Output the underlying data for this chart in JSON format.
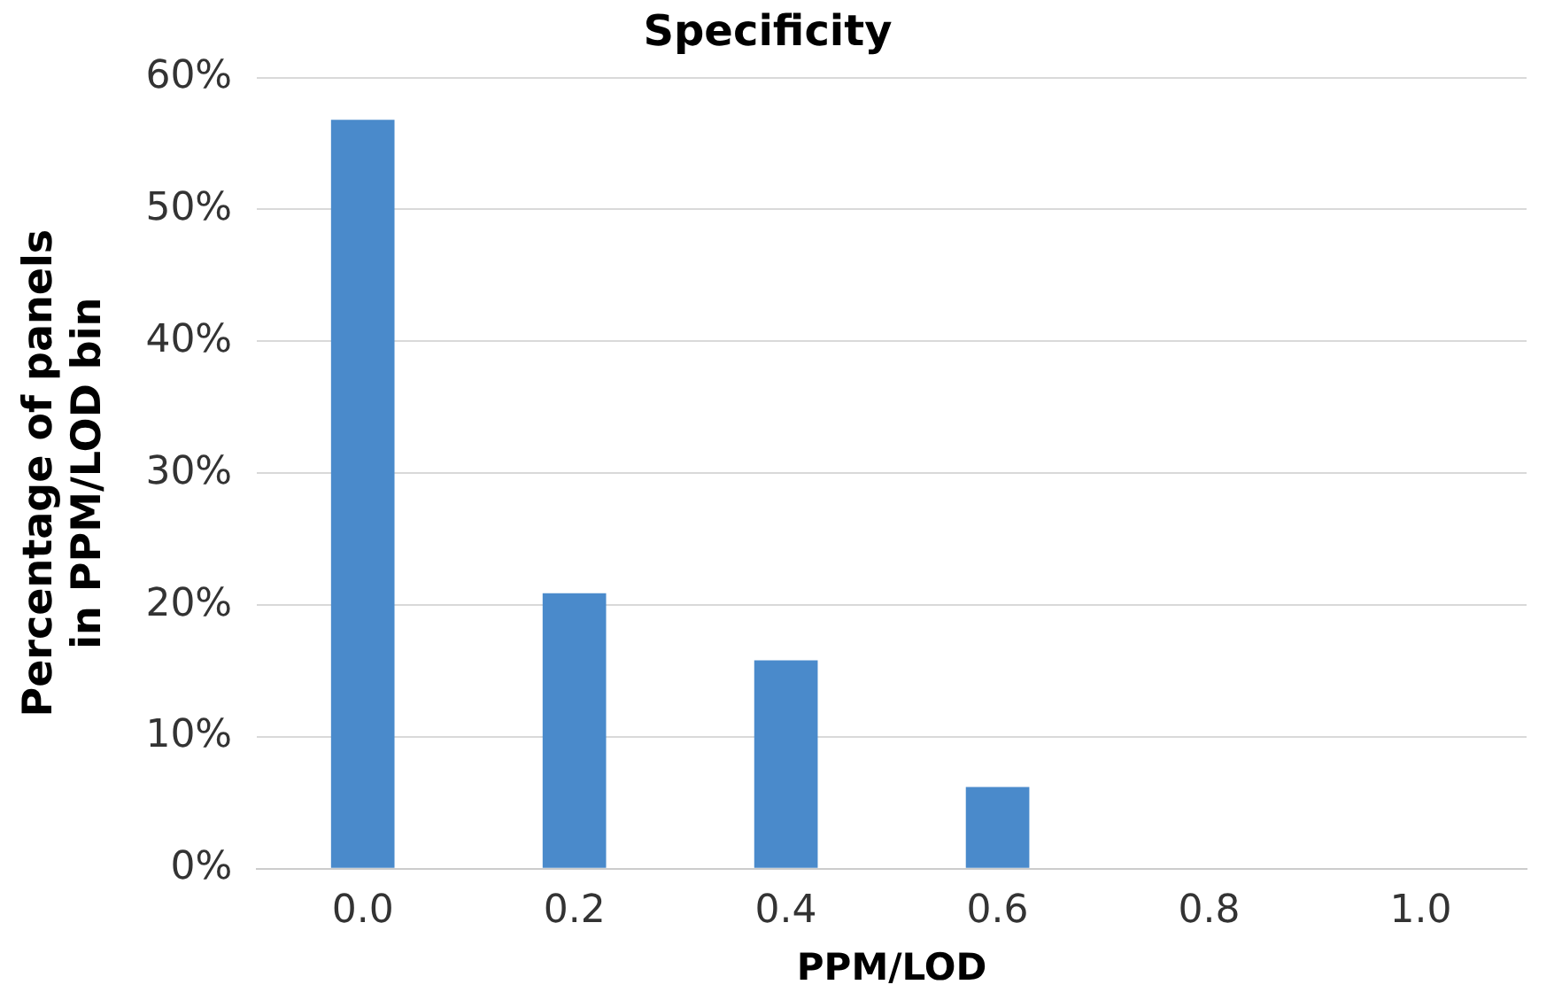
{
  "chart_data": {
    "type": "bar",
    "title": "Specificity",
    "xlabel": "PPM/LOD",
    "ylabel": "Percentage of panels in PPM/LOD bin",
    "categories": [
      "0.0",
      "0.2",
      "0.4",
      "0.6",
      "0.8",
      "1.0"
    ],
    "values": [
      56.8,
      20.9,
      15.8,
      6.2,
      0,
      0
    ],
    "color": "#4a8acb",
    "ylim": [
      0,
      60
    ],
    "yticks": [
      {
        "value": 0,
        "label": "0%"
      },
      {
        "value": 10,
        "label": "10%"
      },
      {
        "value": 20,
        "label": "20%"
      },
      {
        "value": 30,
        "label": "30%"
      },
      {
        "value": 40,
        "label": "40%"
      },
      {
        "value": 50,
        "label": "50%"
      },
      {
        "value": 60,
        "label": "60%"
      }
    ],
    "grid": "y",
    "legend": false
  }
}
